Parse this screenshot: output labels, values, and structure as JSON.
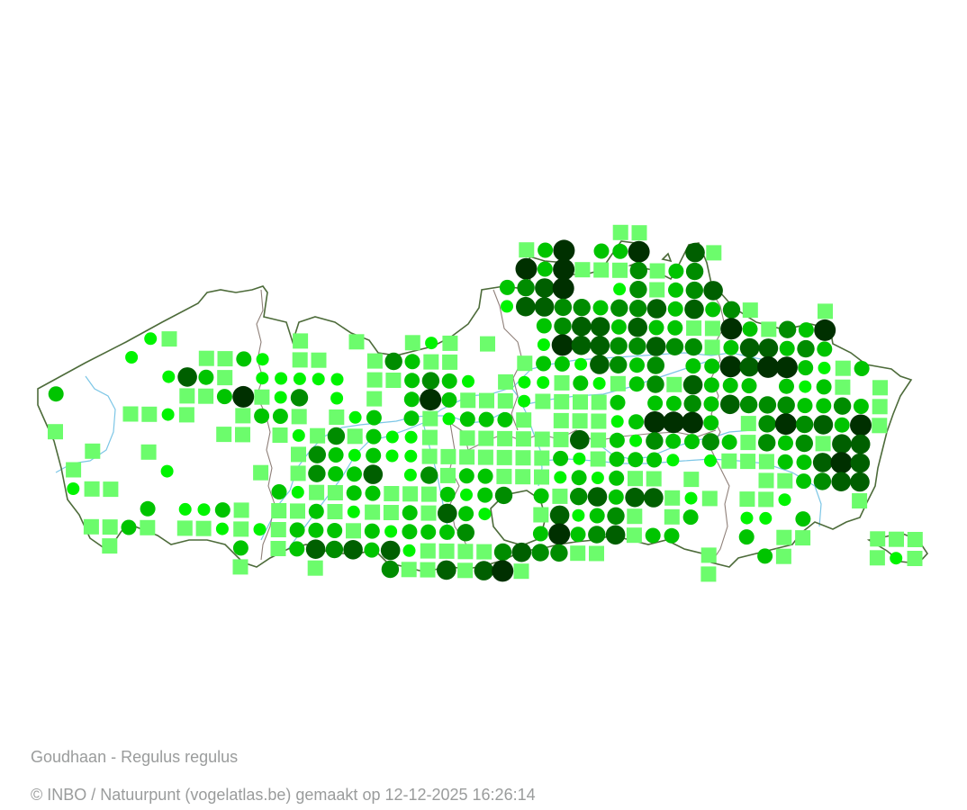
{
  "map": {
    "title": "Goudhaan - Regulus regulus",
    "credit": "© INBO / Natuurpunt (vogelatlas.be) gemaakt op 12-12-2025 16:26:14",
    "colors": {
      "border": "#4d6b3a",
      "province_border": "#8f8079",
      "river": "#7cc6e6",
      "square": "#6cfc6c",
      "level_a": "#00f400",
      "level_b": "#00c400",
      "level_c": "#008c00",
      "level_d": "#005f00",
      "level_e": "#003000"
    },
    "symbol_legend": {
      "s": "square",
      "a": "circle-level-1",
      "b": "circle-level-2",
      "c": "circle-level-3",
      "d": "circle-level-4",
      "e": "circle-level-5"
    },
    "grid_rows": [
      "..............................ss................",
      ".........................sbe.bbe..ds............",
      ".........................ebessscsbc.............",
      "........................bcde..acsbcd............",
      "........................addccbccdbdbcs...s......",
      "..........................bcddbdbbssebscbe......",
      ".....as......s..s..sas.s..aeddccdccsbddbcb......",
      "....a...ssba.ss..scbss...sbbadcbc.bbedeebasb....",
      "......adbs.aaaaa.ssbcba.saasbasbcsdbbb.babs.s...",
      "b......ssbesac.a.s.bebsssassssb.bbcbdcccbbcbs...",
      "....ssas..sbbs.sab.bsabbbs.sssabeeeb.scecdbes...",
      "s........ss.sascsbaas.ssssssdsbacbbcbscbcsdd....",
      "..s..s.......scbabaasssssssbasbbba.asssbbded....",
      ".s....a....s.scbbd.acsbbsssababss.s...ssbcdd....",
      ".ass........bassbbsssbabc.bscdbddsas.ssa...s....",
      ".....b.aabs.ssbsassbsdba..sdabcs.sb..aa.b.......",
      "..ssbs.ssasasbbbsbabbbc...bebcdsbb...b.ss...sss.",
      "...s......b.sbdcdbdasssscdccss.....s..bs....sas",
      "..........s...s...cssdsdes.........s............"
    ]
  }
}
